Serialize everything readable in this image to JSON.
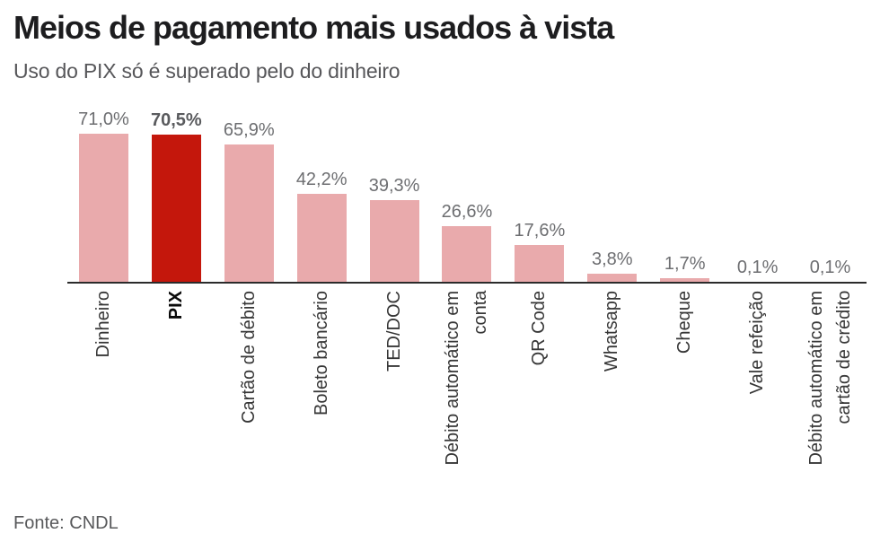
{
  "header": {
    "title": "Meios de pagamento mais usados à vista",
    "subtitle": "Uso do PIX só é superado pelo do dinheiro"
  },
  "footer": {
    "source": "Fonte: CNDL"
  },
  "colors": {
    "bar": "#e9aaac",
    "bar_highlight": "#c4170c",
    "axis": "#2b2b2b",
    "value_label": "#6d6e71",
    "value_label_highlight": "#5a5b5e",
    "x_label": "#363636",
    "x_label_highlight": "#0a0a0a"
  },
  "chart_data": {
    "type": "bar",
    "title": "Meios de pagamento mais usados à vista",
    "subtitle": "Uso do PIX só é superado pelo do dinheiro",
    "unit": "%",
    "ylim": [
      0,
      80
    ],
    "grid": false,
    "legend": "none",
    "axis_ticks": "none",
    "value_label_format": "decimal comma, e.g. 71,0%",
    "x_label_rotation": -90,
    "categories": [
      "Dinheiro",
      "PIX",
      "Cartão de débito",
      "Boleto bancário",
      "TED/DOC",
      "Débito automático em conta",
      "QR Code",
      "Whatsapp",
      "Cheque",
      "Vale refeição",
      "Débito automático em cartão de crédito"
    ],
    "values": [
      71.0,
      70.5,
      65.9,
      42.2,
      39.3,
      26.6,
      17.6,
      3.8,
      1.7,
      0.1,
      0.1
    ],
    "bars": [
      {
        "key": "dinheiro",
        "label": "Dinheiro",
        "value": 71.0,
        "value_text": "71,0%",
        "highlight": false
      },
      {
        "key": "pix",
        "label": "PIX",
        "value": 70.5,
        "value_text": "70,5%",
        "highlight": true
      },
      {
        "key": "cartao-de-debito",
        "label": "Cartão de débito",
        "value": 65.9,
        "value_text": "65,9%",
        "highlight": false
      },
      {
        "key": "boleto-bancario",
        "label": "Boleto bancário",
        "value": 42.2,
        "value_text": "42,2%",
        "highlight": false
      },
      {
        "key": "ted-doc",
        "label": "TED/DOC",
        "value": 39.3,
        "value_text": "39,3%",
        "highlight": false
      },
      {
        "key": "debito-automatico-em-conta",
        "label": "Débito automático em\nconta",
        "value": 26.6,
        "value_text": "26,6%",
        "highlight": false
      },
      {
        "key": "qr-code",
        "label": "QR Code",
        "value": 17.6,
        "value_text": "17,6%",
        "highlight": false
      },
      {
        "key": "whatsapp",
        "label": "Whatsapp",
        "value": 3.8,
        "value_text": "3,8%",
        "highlight": false
      },
      {
        "key": "cheque",
        "label": "Cheque",
        "value": 1.7,
        "value_text": "1,7%",
        "highlight": false
      },
      {
        "key": "vale-refeicao",
        "label": "Vale refeição",
        "value": 0.1,
        "value_text": "0,1%",
        "highlight": false
      },
      {
        "key": "debito-automatico-em-cartao-de-credito",
        "label": "Débito automático em\ncartão de crédito",
        "value": 0.1,
        "value_text": "0,1%",
        "highlight": false
      }
    ]
  }
}
